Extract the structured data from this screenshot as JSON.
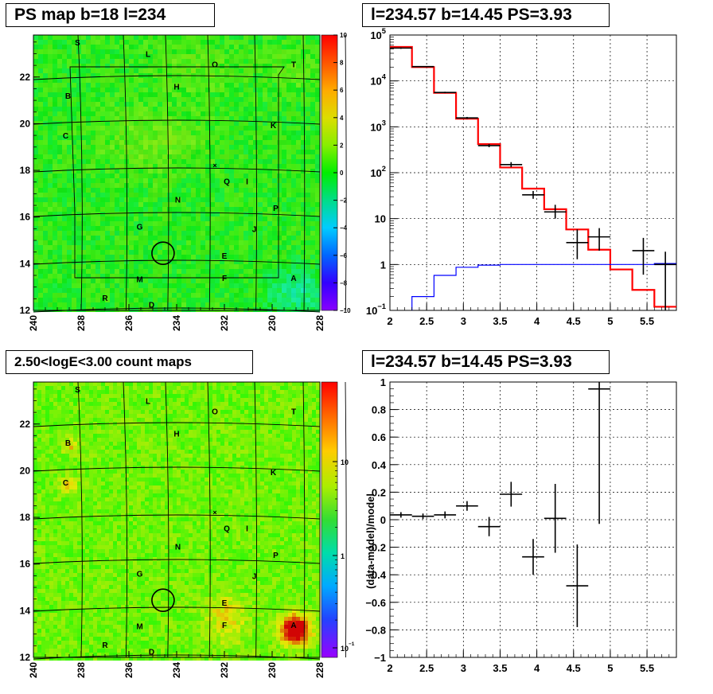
{
  "panels": {
    "top_left_title": "PS map b=18 l=234",
    "top_right_title": "l=234.57 b=14.45 PS=3.93",
    "bottom_left_title": "2.50<logE<3.00 count maps",
    "bottom_right_title": "l=234.57 b=14.45 PS=3.93"
  },
  "chart_data": [
    {
      "type": "heatmap",
      "title": "PS map b=18 l=234",
      "x_ticks": [
        "240",
        "238",
        "236",
        "234",
        "232",
        "230",
        "228"
      ],
      "y_ticks": [
        "12",
        "14",
        "16",
        "18",
        "20",
        "22"
      ],
      "xlim": [
        240,
        228
      ],
      "ylim": [
        12,
        23.8
      ],
      "colorbar": {
        "min": -10,
        "max": 10,
        "ticks": [
          "10",
          "8",
          "6",
          "4",
          "2",
          "0",
          "−2",
          "−4",
          "−6",
          "−8",
          "−10"
        ]
      },
      "source_labels": [
        {
          "label": "S",
          "l": 238.15,
          "b": 23.5
        },
        {
          "label": "L",
          "l": 235.2,
          "b": 23.0
        },
        {
          "label": "O",
          "l": 232.4,
          "b": 22.55
        },
        {
          "label": "T",
          "l": 229.1,
          "b": 22.55
        },
        {
          "label": "H",
          "l": 234.0,
          "b": 21.6
        },
        {
          "label": "B",
          "l": 238.55,
          "b": 21.2
        },
        {
          "label": "K",
          "l": 229.95,
          "b": 19.95
        },
        {
          "label": "C",
          "l": 238.65,
          "b": 19.5
        },
        {
          "label": "Q",
          "l": 231.9,
          "b": 17.55
        },
        {
          "label": "I",
          "l": 231.05,
          "b": 17.55
        },
        {
          "label": "N",
          "l": 233.95,
          "b": 16.75
        },
        {
          "label": "P",
          "l": 229.85,
          "b": 16.4
        },
        {
          "label": "G",
          "l": 235.55,
          "b": 15.6
        },
        {
          "label": "J",
          "l": 230.75,
          "b": 15.5
        },
        {
          "label": "E",
          "l": 232.0,
          "b": 14.35
        },
        {
          "label": "M",
          "l": 235.55,
          "b": 13.35
        },
        {
          "label": "F",
          "l": 232.0,
          "b": 13.4
        },
        {
          "label": "A",
          "l": 229.1,
          "b": 13.4
        },
        {
          "label": "R",
          "l": 237.0,
          "b": 12.55
        },
        {
          "label": "D",
          "l": 235.05,
          "b": 12.25
        }
      ],
      "marker": {
        "l": 234.57,
        "b": 14.45
      }
    },
    {
      "type": "line",
      "title": "l=234.57 b=14.45 PS=3.93",
      "yscale": "log",
      "xlim": [
        2,
        5.9
      ],
      "ylim": [
        0.1,
        100000
      ],
      "x_ticks": [
        "2",
        "2.5",
        "3",
        "3.5",
        "4",
        "4.5",
        "5",
        "5.5"
      ],
      "y_ticks": [
        {
          "v": 0.1,
          "base": "10",
          "exp": "−1"
        },
        {
          "v": 1,
          "base": "1",
          "exp": ""
        },
        {
          "v": 10,
          "base": "10",
          "exp": ""
        },
        {
          "v": 100,
          "base": "10",
          "exp": "2"
        },
        {
          "v": 1000,
          "base": "10",
          "exp": "3"
        },
        {
          "v": 10000,
          "base": "10",
          "exp": "4"
        },
        {
          "v": 100000,
          "base": "10",
          "exp": "5"
        }
      ],
      "grid": true,
      "series": [
        {
          "color": "#ff0000",
          "edges": [
            2.0,
            2.3,
            2.6,
            2.9,
            3.2,
            3.5,
            3.8,
            4.1,
            4.4,
            4.7,
            5.0,
            5.3,
            5.6,
            5.9
          ],
          "values": [
            55000,
            20000,
            5500,
            1500,
            420,
            130,
            45,
            16,
            5.8,
            2.1,
            0.78,
            0.28,
            0.12
          ]
        },
        {
          "color": "#0000ff",
          "edges": [
            2.0,
            2.3,
            2.6,
            2.9,
            3.2,
            3.5,
            3.8,
            4.1,
            4.4,
            4.7,
            5.0,
            5.3,
            5.6,
            5.9
          ],
          "values": [
            0.05,
            0.2,
            0.58,
            0.87,
            0.97,
            1.0,
            1.0,
            1.0,
            1.0,
            1.0,
            1.0,
            1.0,
            1.05
          ]
        }
      ],
      "data_points": [
        {
          "x": 2.15,
          "y": 52000,
          "ylo": 50000,
          "yhi": 54000,
          "xerr": 0.15
        },
        {
          "x": 2.45,
          "y": 20500,
          "ylo": 20000,
          "yhi": 21000,
          "xerr": 0.15
        },
        {
          "x": 2.75,
          "y": 5600,
          "ylo": 5400,
          "yhi": 5800,
          "xerr": 0.15
        },
        {
          "x": 3.05,
          "y": 1560,
          "ylo": 1480,
          "yhi": 1640,
          "xerr": 0.15
        },
        {
          "x": 3.35,
          "y": 390,
          "ylo": 360,
          "yhi": 420,
          "xerr": 0.15
        },
        {
          "x": 3.65,
          "y": 150,
          "ylo": 132,
          "yhi": 170,
          "xerr": 0.15
        },
        {
          "x": 3.95,
          "y": 33,
          "ylo": 27,
          "yhi": 40,
          "xerr": 0.15
        },
        {
          "x": 4.25,
          "y": 14,
          "ylo": 10,
          "yhi": 20,
          "xerr": 0.15
        },
        {
          "x": 4.55,
          "y": 3,
          "ylo": 1.3,
          "yhi": 5.8,
          "xerr": 0.15
        },
        {
          "x": 4.85,
          "y": 4,
          "ylo": 2,
          "yhi": 6.2,
          "xerr": 0.15
        },
        {
          "x": 5.45,
          "y": 2,
          "ylo": 0.6,
          "yhi": 3.8,
          "xerr": 0.15
        },
        {
          "x": 5.75,
          "y": 1,
          "ylo": 0.1,
          "yhi": 1.9,
          "xerr": 0.15
        }
      ]
    },
    {
      "type": "heatmap",
      "title": "2.50<logE<3.00 count maps",
      "x_ticks": [
        "240",
        "238",
        "236",
        "234",
        "232",
        "230",
        "228"
      ],
      "y_ticks": [
        "12",
        "14",
        "16",
        "18",
        "20",
        "22"
      ],
      "xlim": [
        240,
        228
      ],
      "ylim": [
        12,
        23.8
      ],
      "zscale": "log",
      "colorbar": {
        "ticks": [
          {
            "v": 10,
            "base": "10",
            "exp": ""
          },
          {
            "v": 1,
            "base": "1",
            "exp": ""
          },
          {
            "v": 0.1,
            "base": "10",
            "exp": "−1"
          }
        ]
      },
      "marker": {
        "l": 234.57,
        "b": 14.45
      }
    },
    {
      "type": "scatter",
      "title": "l=234.57 b=14.45 PS=3.93",
      "ylabel": "(data-model)/model",
      "xlim": [
        2,
        5.9
      ],
      "ylim": [
        -1,
        1
      ],
      "x_ticks": [
        "2",
        "2.5",
        "3",
        "3.5",
        "4",
        "4.5",
        "5",
        "5.5"
      ],
      "y_ticks": [
        "−1",
        "−0.8",
        "−0.6",
        "−0.4",
        "−0.2",
        "0",
        "0.2",
        "0.4",
        "0.6",
        "0.8",
        "1"
      ],
      "grid": true,
      "points": [
        {
          "x": 2.15,
          "y": 0.035,
          "yerr": 0.02,
          "xerr": 0.15
        },
        {
          "x": 2.45,
          "y": 0.025,
          "yerr": 0.02,
          "xerr": 0.15
        },
        {
          "x": 2.75,
          "y": 0.035,
          "yerr": 0.025,
          "xerr": 0.15
        },
        {
          "x": 3.05,
          "y": 0.1,
          "yerr": 0.035,
          "xerr": 0.15
        },
        {
          "x": 3.35,
          "y": -0.05,
          "yerr": 0.07,
          "xerr": 0.15
        },
        {
          "x": 3.65,
          "y": 0.185,
          "yerr": 0.09,
          "xerr": 0.15
        },
        {
          "x": 3.95,
          "y": -0.27,
          "yerr": 0.13,
          "xerr": 0.15
        },
        {
          "x": 4.25,
          "y": 0.01,
          "yerr": 0.25,
          "xerr": 0.15
        },
        {
          "x": 4.55,
          "y": -0.48,
          "yerr": 0.3,
          "xerr": 0.15
        },
        {
          "x": 4.85,
          "y": 0.95,
          "yerr": 0.98,
          "xerr": 0.15
        }
      ]
    }
  ]
}
